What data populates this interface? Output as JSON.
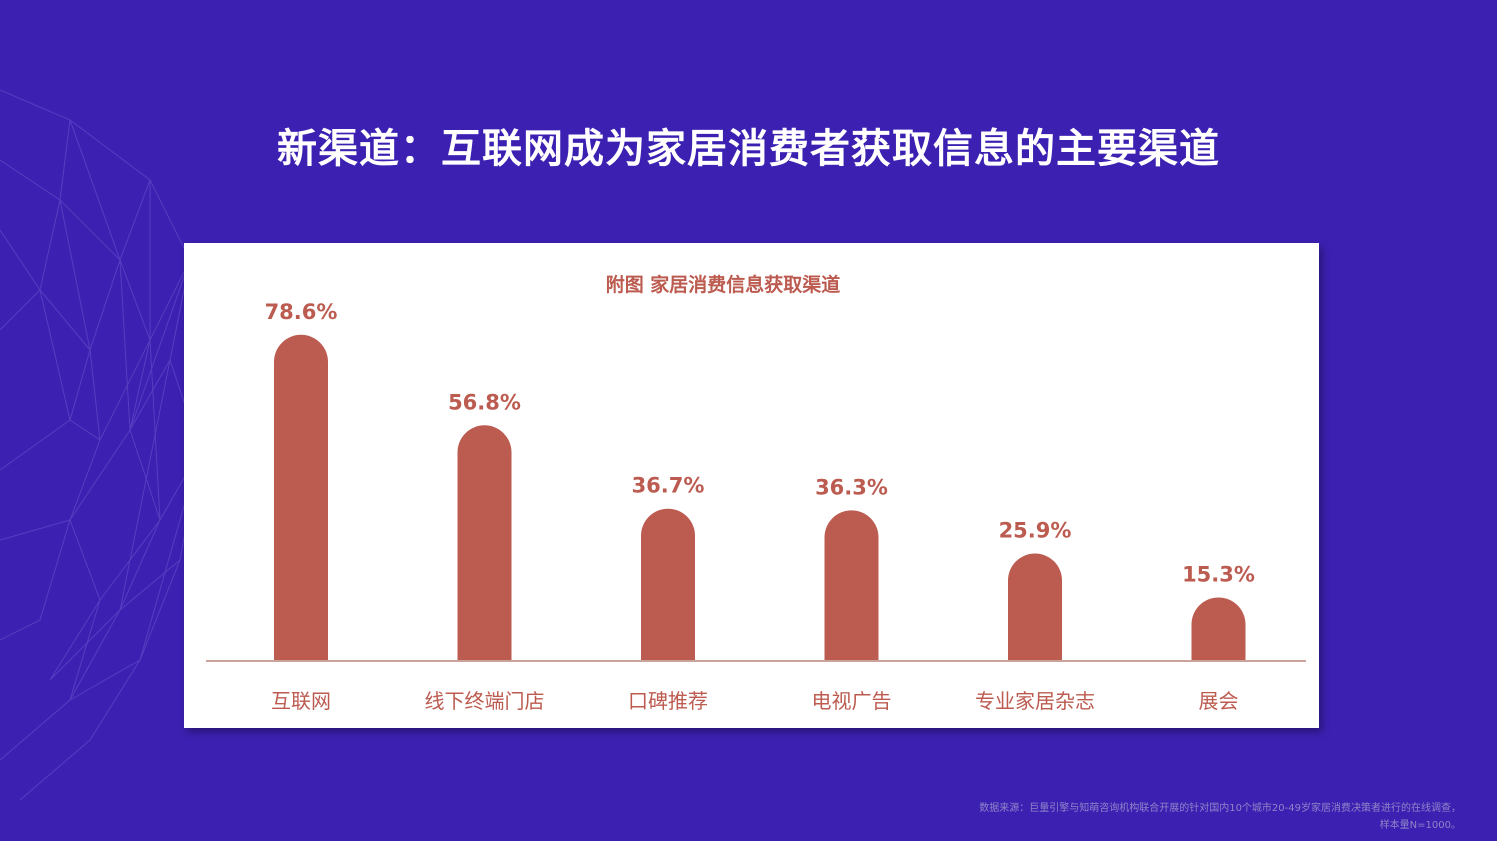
{
  "slide": {
    "title": "新渠道：互联网成为家居消费者获取信息的主要渠道"
  },
  "colors": {
    "background": "#3c20b2",
    "bar": "#bc5b50",
    "title_text": "#ffffff",
    "chart_text": "#bc5b50"
  },
  "chart_data": {
    "type": "bar",
    "title": "附图 家居消费信息获取渠道",
    "categories": [
      "互联网",
      "线下终端门店",
      "口碑推荐",
      "电视广告",
      "专业家居杂志",
      "展会"
    ],
    "values": [
      78.6,
      56.8,
      36.7,
      36.3,
      25.9,
      15.3
    ],
    "value_labels": [
      "78.6%",
      "56.8%",
      "36.7%",
      "36.3%",
      "25.9%",
      "15.3%"
    ],
    "unit": "%",
    "bar_shape": "rounded-top",
    "grid": false,
    "legend": "none",
    "ylim": [
      0,
      80
    ]
  },
  "footnote": {
    "line1": "数据来源：巨量引擎与知萌咨询机构联合开展的针对国内10个城市20-49岁家居消费决策者进行的在线调查，",
    "line2": "样本量N=1000。"
  }
}
